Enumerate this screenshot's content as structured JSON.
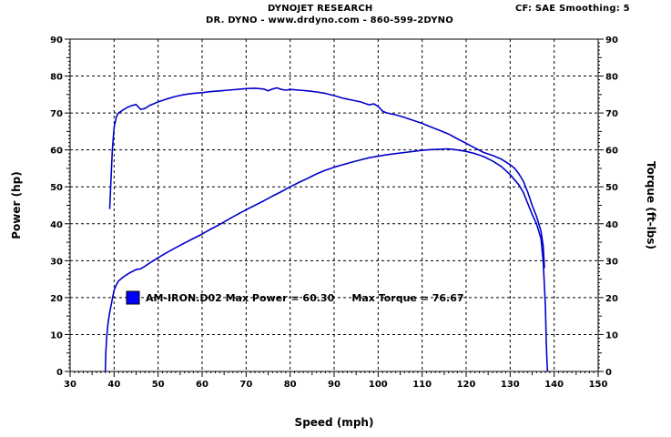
{
  "header": {
    "title": "DYNOJET RESEARCH",
    "subtitle": "DR. DYNO - www.drdyno.com - 860-599-2DYNO",
    "settings": "CF: SAE  Smoothing: 5"
  },
  "chart_data": {
    "type": "line",
    "xlabel": "Speed (mph)",
    "ylabel_left": "Power (hp)",
    "ylabel_right": "Torque (ft-lbs)",
    "xlim": [
      30,
      150
    ],
    "ylim": [
      0,
      90
    ],
    "x_ticks": [
      30,
      40,
      50,
      60,
      70,
      80,
      90,
      100,
      110,
      120,
      130,
      140,
      150
    ],
    "y_ticks": [
      0,
      10,
      20,
      30,
      40,
      50,
      60,
      70,
      80,
      90
    ],
    "grid": true,
    "legend": {
      "placement": "lower-left",
      "text": "AM-IRON.D02 Max Power = 60.30     Max Torque = 76.67",
      "color": "#0000ff"
    },
    "line_color": "#0000cc",
    "series": [
      {
        "axis": "left",
        "x": [
          38,
          38.1,
          38.3,
          38.6,
          39,
          39.5,
          40,
          40.5,
          41,
          42,
          43,
          44,
          45,
          46,
          47,
          48,
          50,
          52,
          54,
          56,
          58,
          60,
          62,
          64,
          66,
          68,
          70,
          72,
          74,
          76,
          78,
          80,
          82,
          84,
          86,
          88,
          90,
          92,
          94,
          96,
          98,
          100,
          102,
          104,
          106,
          108,
          110,
          112,
          114,
          116,
          118,
          120,
          122,
          124,
          126,
          128,
          130,
          132,
          133,
          134,
          135,
          136,
          137,
          137.5,
          138,
          138.2,
          138.4,
          138.5
        ],
        "values": [
          0,
          5,
          9,
          13,
          16,
          19,
          22,
          23.5,
          24.5,
          25.5,
          26.3,
          27,
          27.6,
          27.8,
          28.5,
          29.3,
          30.8,
          32.2,
          33.5,
          34.8,
          36,
          37.2,
          38.6,
          39.8,
          41.2,
          42.5,
          43.8,
          45,
          46.2,
          47.5,
          48.7,
          50,
          51.2,
          52.3,
          53.5,
          54.5,
          55.3,
          56,
          56.7,
          57.3,
          57.9,
          58.3,
          58.7,
          59,
          59.3,
          59.6,
          59.9,
          60.1,
          60.2,
          60.3,
          60,
          59.6,
          59,
          58.2,
          57,
          55.5,
          53.3,
          50.5,
          48.5,
          45.5,
          42.5,
          40,
          36,
          30,
          18,
          8,
          2,
          0
        ]
      },
      {
        "axis": "right",
        "x": [
          39,
          39.3,
          39.6,
          40,
          40.5,
          41,
          42,
          43,
          44,
          45,
          46,
          47,
          48,
          49,
          50,
          52,
          54,
          56,
          58,
          60,
          62,
          64,
          66,
          68,
          70,
          72,
          74,
          75,
          76,
          77,
          78,
          79,
          80,
          82,
          84,
          86,
          88,
          90,
          92,
          94,
          96,
          98,
          99,
          100,
          101,
          102,
          104,
          106,
          108,
          110,
          112,
          114,
          116,
          118,
          120,
          122,
          124,
          126,
          128,
          130,
          131,
          132,
          133,
          134,
          135,
          136,
          137,
          137.5,
          137.8
        ],
        "values": [
          44,
          52,
          60,
          66,
          69,
          70,
          70.8,
          71.5,
          72,
          72.3,
          71,
          71.2,
          72,
          72.5,
          73,
          73.8,
          74.5,
          75,
          75.3,
          75.5,
          75.8,
          76,
          76.2,
          76.4,
          76.6,
          76.7,
          76.5,
          76,
          76.5,
          76.8,
          76.4,
          76.2,
          76.4,
          76.2,
          76,
          75.7,
          75.3,
          74.7,
          74,
          73.5,
          73,
          72.2,
          72.5,
          71.8,
          70.5,
          70,
          69.5,
          68.8,
          68,
          67.2,
          66.2,
          65.3,
          64.3,
          63,
          61.8,
          60.5,
          59.3,
          58.5,
          57.5,
          56,
          55,
          53.5,
          51.5,
          48.5,
          45,
          42,
          38,
          34,
          28
        ]
      }
    ]
  }
}
